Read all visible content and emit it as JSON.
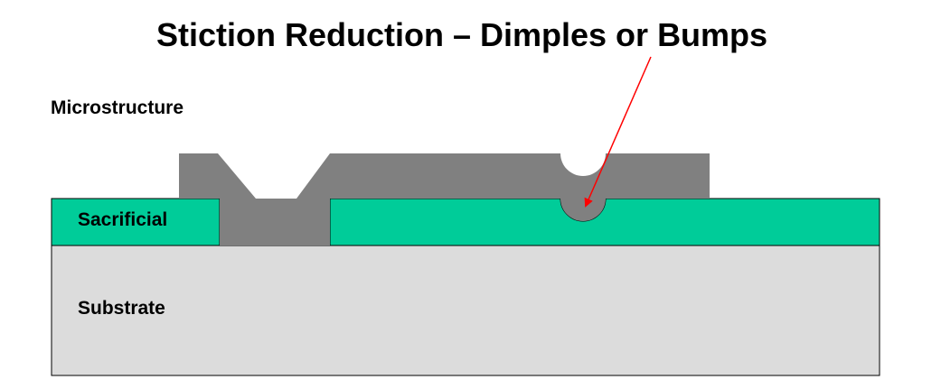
{
  "title": "Stiction Reduction – Dimples or Bumps",
  "labels": {
    "microstructure": "Microstructure",
    "sacrificial": "Sacrificial",
    "substrate": "Substrate"
  },
  "colors": {
    "substrate": "#dcdcdc",
    "sacrificial": "#00cc99",
    "microstructure": "#808080",
    "arrow": "#ff0000",
    "outline": "#000000"
  }
}
